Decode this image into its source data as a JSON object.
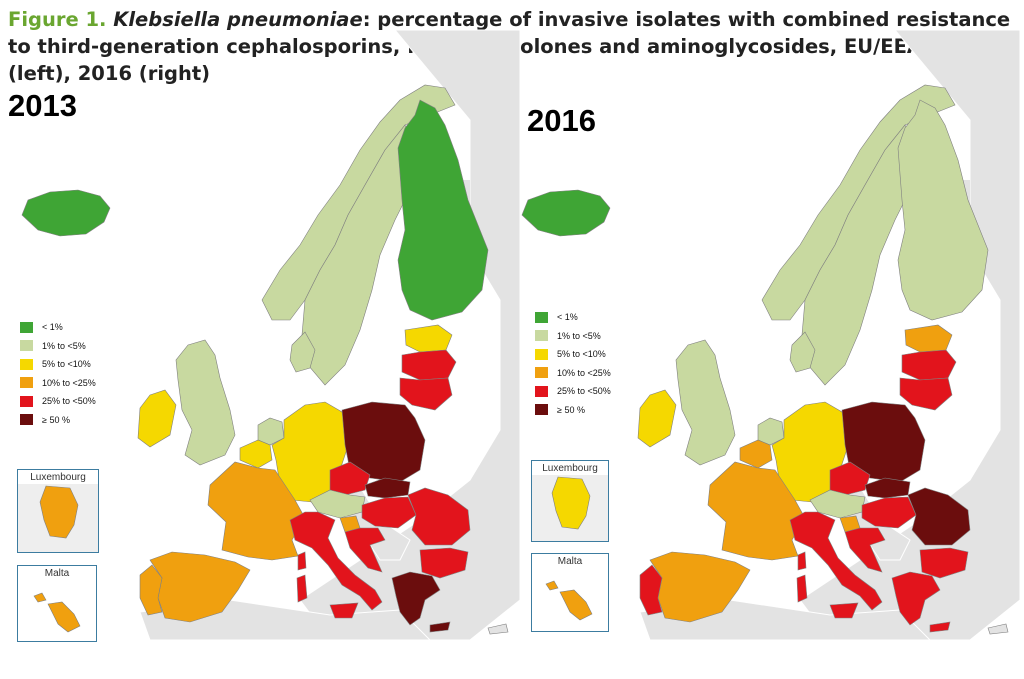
{
  "caption": {
    "figure_label": "Figure 1.",
    "species": "Klebsiella pneumoniae",
    "text": ": percentage of invasive isolates with combined resistance to third-generation cephalosporins, fluoroquinolones and aminoglycosides, EU/EEA, 2013 (left), 2016 (right)"
  },
  "colors": {
    "lt1": "#3fa535",
    "1to5": "#c8d9a0",
    "5to10": "#f5d800",
    "10to25": "#f0a00f",
    "25to50": "#e2141c",
    "ge50": "#6b0d0d",
    "no_data": "#e3e3e3",
    "sea": "#ffffff",
    "inset_border": "#3c7ca0"
  },
  "legend": [
    {
      "label": "< 1%",
      "color_key": "lt1"
    },
    {
      "label": "1% to <5%",
      "color_key": "1to5"
    },
    {
      "label": "5% to <10%",
      "color_key": "5to10"
    },
    {
      "label": "10% to <25%",
      "color_key": "10to25"
    },
    {
      "label": "25% to <50%",
      "color_key": "25to50"
    },
    {
      "label": "≥ 50 %",
      "color_key": "ge50"
    }
  ],
  "maps": [
    {
      "year": "2013",
      "insets": {
        "luxembourg": "Luxembourg",
        "malta": "Malta"
      },
      "inset_colors": {
        "luxembourg": "10to25",
        "malta": "10to25"
      },
      "countries": {
        "iceland": "lt1",
        "norway": "1to5",
        "sweden": "1to5",
        "finland": "lt1",
        "denmark": "1to5",
        "estonia": "5to10",
        "latvia": "25to50",
        "lithuania": "25to50",
        "ireland": "5to10",
        "uk": "1to5",
        "netherlands": "1to5",
        "belgium": "5to10",
        "germany": "5to10",
        "poland": "ge50",
        "czechia": "25to50",
        "slovakia": "ge50",
        "austria": "1to5",
        "hungary": "25to50",
        "slovenia": "10to25",
        "croatia": "25to50",
        "romania": "25to50",
        "bulgaria": "25to50",
        "france": "10to25",
        "spain": "10to25",
        "portugal": "10to25",
        "italy": "25to50",
        "sardinia": "25to50",
        "sicily": "25to50",
        "corsica": "25to50",
        "greece": "ge50",
        "cyprus": "no_data"
      }
    },
    {
      "year": "2016",
      "insets": {
        "luxembourg": "Luxembourg",
        "malta": "Malta"
      },
      "inset_colors": {
        "luxembourg": "5to10",
        "malta": "10to25"
      },
      "countries": {
        "iceland": "lt1",
        "norway": "1to5",
        "sweden": "1to5",
        "finland": "1to5",
        "denmark": "1to5",
        "estonia": "10to25",
        "latvia": "25to50",
        "lithuania": "25to50",
        "ireland": "5to10",
        "uk": "1to5",
        "netherlands": "1to5",
        "belgium": "10to25",
        "germany": "5to10",
        "poland": "ge50",
        "czechia": "25to50",
        "slovakia": "ge50",
        "austria": "1to5",
        "hungary": "25to50",
        "slovenia": "10to25",
        "croatia": "25to50",
        "romania": "ge50",
        "bulgaria": "25to50",
        "france": "10to25",
        "spain": "10to25",
        "portugal": "25to50",
        "italy": "25to50",
        "sardinia": "25to50",
        "sicily": "25to50",
        "corsica": "25to50",
        "greece": "25to50",
        "cyprus": "no_data"
      }
    }
  ]
}
